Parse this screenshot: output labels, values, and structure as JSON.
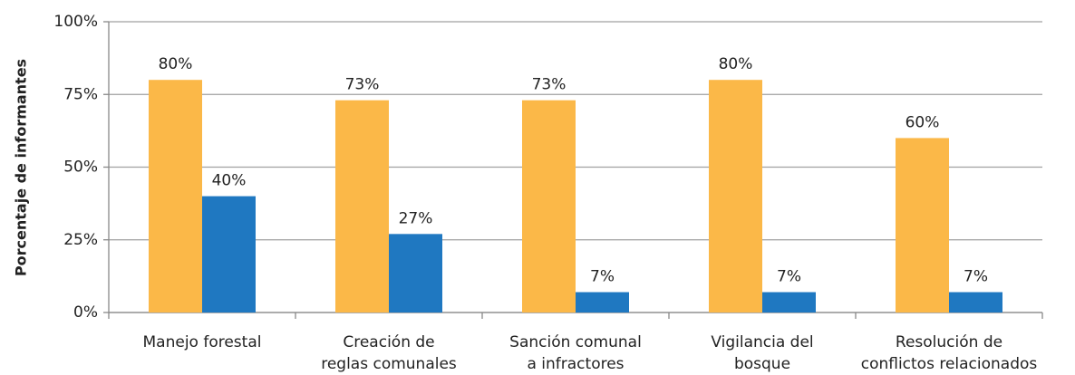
{
  "chart_data": {
    "type": "bar",
    "y_label": "Porcentaje de informantes",
    "categories": [
      [
        "Manejo forestal"
      ],
      [
        "Creación de",
        "reglas comunales"
      ],
      [
        "Sanción comunal",
        "a infractores"
      ],
      [
        "Vigilancia del",
        "bosque"
      ],
      [
        "Resolución de",
        "conflictos relacionados"
      ]
    ],
    "series": [
      {
        "color": "#fbb848",
        "values": [
          80,
          73,
          73,
          80,
          60
        ],
        "value_labels": [
          "80%",
          "73%",
          "73%",
          "80%",
          "60%"
        ]
      },
      {
        "color": "#1f78c1",
        "values": [
          40,
          27,
          7,
          7,
          7
        ],
        "value_labels": [
          "40%",
          "27%",
          "7%",
          "7%",
          "7%"
        ]
      }
    ],
    "ylim": [
      0,
      100
    ],
    "yticks": [
      {
        "value": 0,
        "label": "0%"
      },
      {
        "value": 25,
        "label": "25%"
      },
      {
        "value": 50,
        "label": "50%"
      },
      {
        "value": 75,
        "label": "75%"
      },
      {
        "value": 100,
        "label": "100%"
      }
    ],
    "grid": true
  }
}
